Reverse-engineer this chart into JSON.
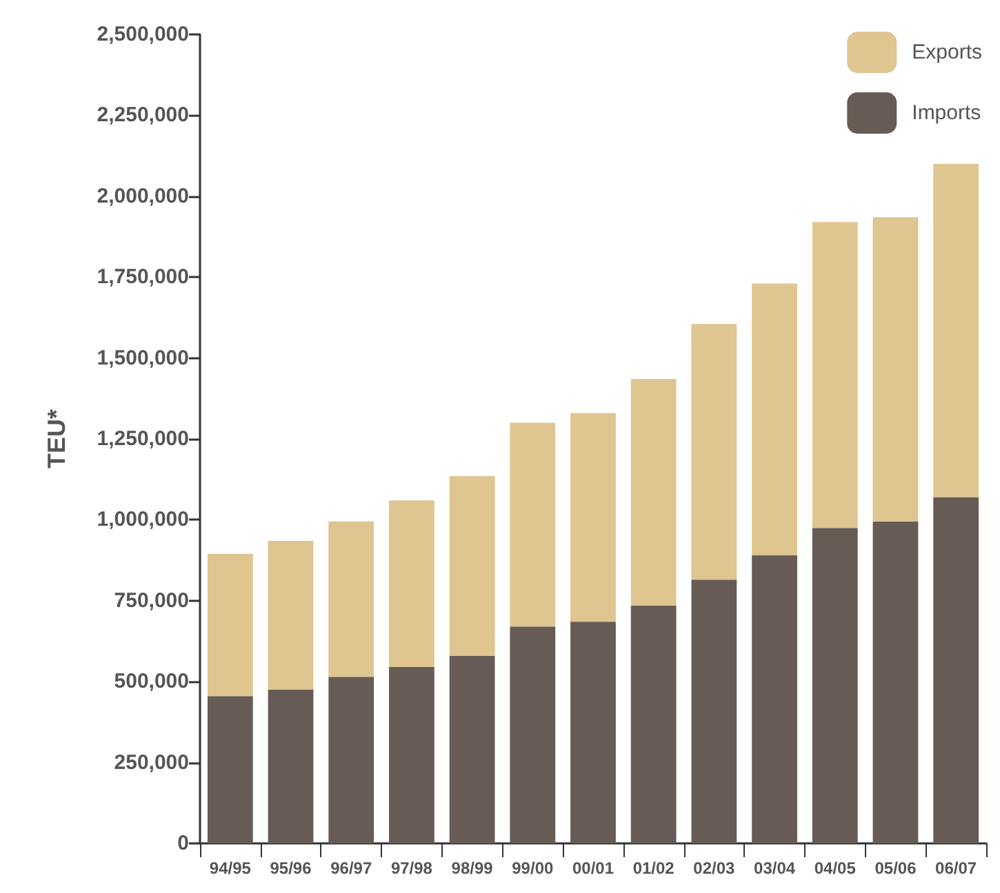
{
  "chart_data": {
    "type": "bar",
    "ylabel": "TEU*",
    "stacked": true,
    "legend": "top right",
    "grid": false,
    "categories": [
      "94/95",
      "95/96",
      "96/97",
      "97/98",
      "98/99",
      "99/00",
      "00/01",
      "01/02",
      "02/03",
      "03/04",
      "04/05",
      "05/06",
      "06/07"
    ],
    "series": [
      {
        "name": "Imports",
        "color": "#665c55",
        "values": [
          455000,
          475000,
          515000,
          545000,
          580000,
          670000,
          685000,
          735000,
          815000,
          890000,
          975000,
          995000,
          1070000
        ]
      },
      {
        "name": "Exports",
        "color": "#dfc590",
        "values": [
          440000,
          460000,
          480000,
          515000,
          555000,
          630000,
          645000,
          700000,
          790000,
          840000,
          945000,
          940000,
          1030000
        ]
      }
    ],
    "ylim": [
      0,
      2500000
    ],
    "yticks": [
      {
        "value": 0,
        "label": "0"
      },
      {
        "value": 250000,
        "label": "250,000"
      },
      {
        "value": 500000,
        "label": "500,000"
      },
      {
        "value": 750000,
        "label": "750,000"
      },
      {
        "value": 1000000,
        "label": "1,000,000"
      },
      {
        "value": 1250000,
        "label": "1,250,000"
      },
      {
        "value": 1500000,
        "label": "1,500,000"
      },
      {
        "value": 1750000,
        "label": "1,750,000"
      },
      {
        "value": 2000000,
        "label": "2,000,000"
      },
      {
        "value": 2250000,
        "label": "2,250,000"
      },
      {
        "value": 2500000,
        "label": "2,500,000"
      }
    ]
  }
}
